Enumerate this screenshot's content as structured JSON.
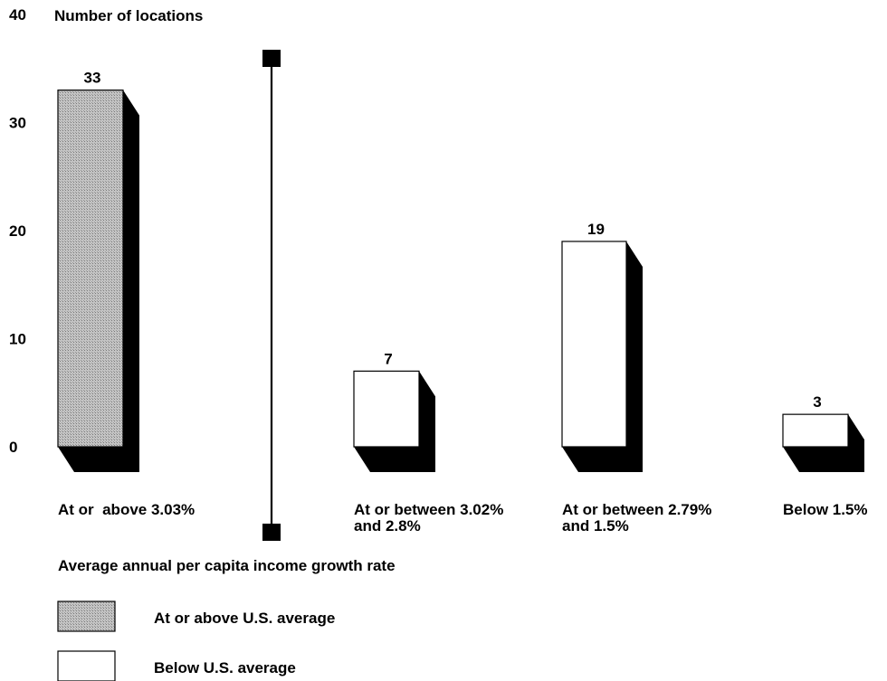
{
  "chart_data": {
    "type": "bar",
    "ylabel": "Number of locations",
    "xlabel": "Average annual per capita income growth rate",
    "ylim": [
      0,
      40
    ],
    "yticks": [
      0,
      10,
      20,
      30,
      40
    ],
    "categories": [
      [
        "At or  above 3.03%"
      ],
      [
        "At or between 3.02%",
        "and 2.8%"
      ],
      [
        "At or between 2.79%",
        "and 1.5%"
      ],
      [
        "Below 1.5%"
      ]
    ],
    "values": [
      33,
      7,
      19,
      3
    ],
    "groups": [
      "above",
      "below",
      "below",
      "below"
    ],
    "legend": [
      {
        "key": "above",
        "label": "At or above U.S. average"
      },
      {
        "key": "below",
        "label": "Below U.S. average"
      }
    ],
    "colors": {
      "above": "#b8b8b8",
      "below": "#ffffff",
      "shadow": "#000000"
    },
    "divider": "between first and second category"
  }
}
